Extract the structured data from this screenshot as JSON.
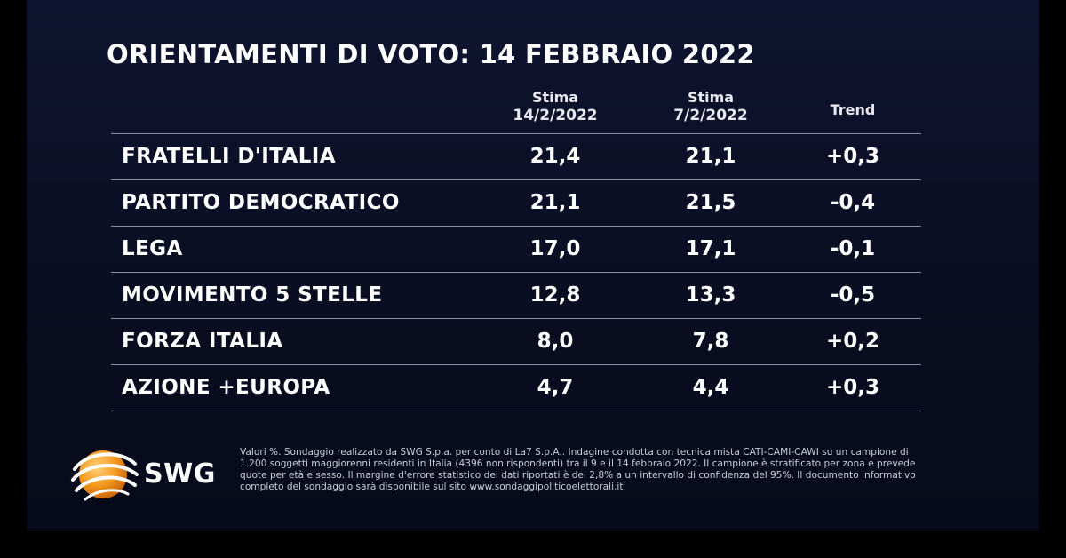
{
  "chart_data": {
    "type": "table",
    "title": "ORIENTAMENTI DI VOTO: 14 FEBBRAIO 2022",
    "columns": [
      {
        "line1": "Stima",
        "line2": "14/2/2022"
      },
      {
        "line1": "Stima",
        "line2": "7/2/2022"
      },
      {
        "line1": "Trend",
        "line2": ""
      }
    ],
    "rows": [
      {
        "party": "FRATELLI D'ITALIA",
        "stima_14_2": "21,4",
        "stima_7_2": "21,1",
        "trend": "+0,3"
      },
      {
        "party": "PARTITO DEMOCRATICO",
        "stima_14_2": "21,1",
        "stima_7_2": "21,5",
        "trend": "-0,4"
      },
      {
        "party": "LEGA",
        "stima_14_2": "17,0",
        "stima_7_2": "17,1",
        "trend": "-0,1"
      },
      {
        "party": "MOVIMENTO 5 STELLE",
        "stima_14_2": "12,8",
        "stima_7_2": "13,3",
        "trend": "-0,5"
      },
      {
        "party": "FORZA ITALIA",
        "stima_14_2": "8,0",
        "stima_7_2": "7,8",
        "trend": "+0,2"
      },
      {
        "party": "AZIONE +EUROPA",
        "stima_14_2": "4,7",
        "stima_7_2": "4,4",
        "trend": "+0,3"
      }
    ]
  },
  "footer": {
    "logo_text": "SWG",
    "note": "Valori %. Sondaggio realizzato da SWG S.p.a. per conto di La7 S.p.A.. Indagine condotta con tecnica mista CATI-CAMI-CAWI su un campione di 1.200 soggetti maggiorenni residenti in Italia (4396 non rispondenti) tra il 9 e il 14 febbraio 2022. Il campione è stratificato per zona e prevede quote per età e sesso. Il margine d'errore statistico dei dati riportati è del 2,8% a un intervallo di confidenza del 95%. Il documento informativo completo del sondaggio sarà disponibile sul sito www.sondaggipoliticoelettorali.it"
  },
  "colors": {
    "panel_background": "#0c1024",
    "text": "#ffffff",
    "divider": "#8b8fa3",
    "logo_orange": "#f39a1e"
  },
  "icons": {
    "logo": "swg-globe-icon"
  }
}
